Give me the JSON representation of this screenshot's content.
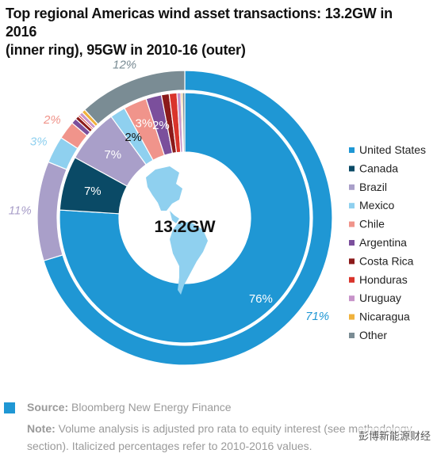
{
  "title_line1": "Top regional Americas wind asset transactions: 13.2GW in 2016",
  "title_line2": "(inner ring), 95GW in 2010-16 (outer)",
  "center_label": "13.2GW",
  "chart_data": {
    "type": "pie",
    "subtype": "double-donut",
    "categories": [
      "United States",
      "Canada",
      "Brazil",
      "Mexico",
      "Chile",
      "Argentina",
      "Costa Rica",
      "Honduras",
      "Uruguay",
      "Nicaragua",
      "Other"
    ],
    "colors": [
      "#1f97d4",
      "#0a4a66",
      "#a99fc9",
      "#8fd0ef",
      "#f0948b",
      "#7b4f9c",
      "#8b1a1a",
      "#d9342b",
      "#c793c9",
      "#f0b23c",
      "#7a8c94"
    ],
    "series": [
      {
        "name": "13.2GW in 2016 (inner ring)",
        "values": [
          76,
          7,
          7,
          2,
          3,
          2,
          1,
          1,
          0.5,
          0.2,
          0.3
        ],
        "labels": [
          "76%",
          "7%",
          "7%",
          "2%",
          "3%",
          "2%",
          "",
          "",
          "",
          "",
          ""
        ]
      },
      {
        "name": "95GW in 2010-16 (outer)",
        "values": [
          71,
          0,
          11,
          3,
          2,
          0.6,
          0.4,
          0.2,
          0.4,
          0.4,
          12
        ],
        "labels": [
          "71%",
          "",
          "11%",
          "3%",
          "2%",
          "",
          "",
          "",
          "",
          "",
          "12%"
        ]
      }
    ],
    "legend_position": "right"
  },
  "footer": {
    "source_label": "Source:",
    "source_text": "Bloomberg New Energy Finance",
    "note_label": "Note:",
    "note_text": "Volume analysis is adjusted pro rata to equity interest (see methodology section). Italicized percentages refer to 2010-2016 values."
  },
  "watermark": "彭博新能源财经"
}
